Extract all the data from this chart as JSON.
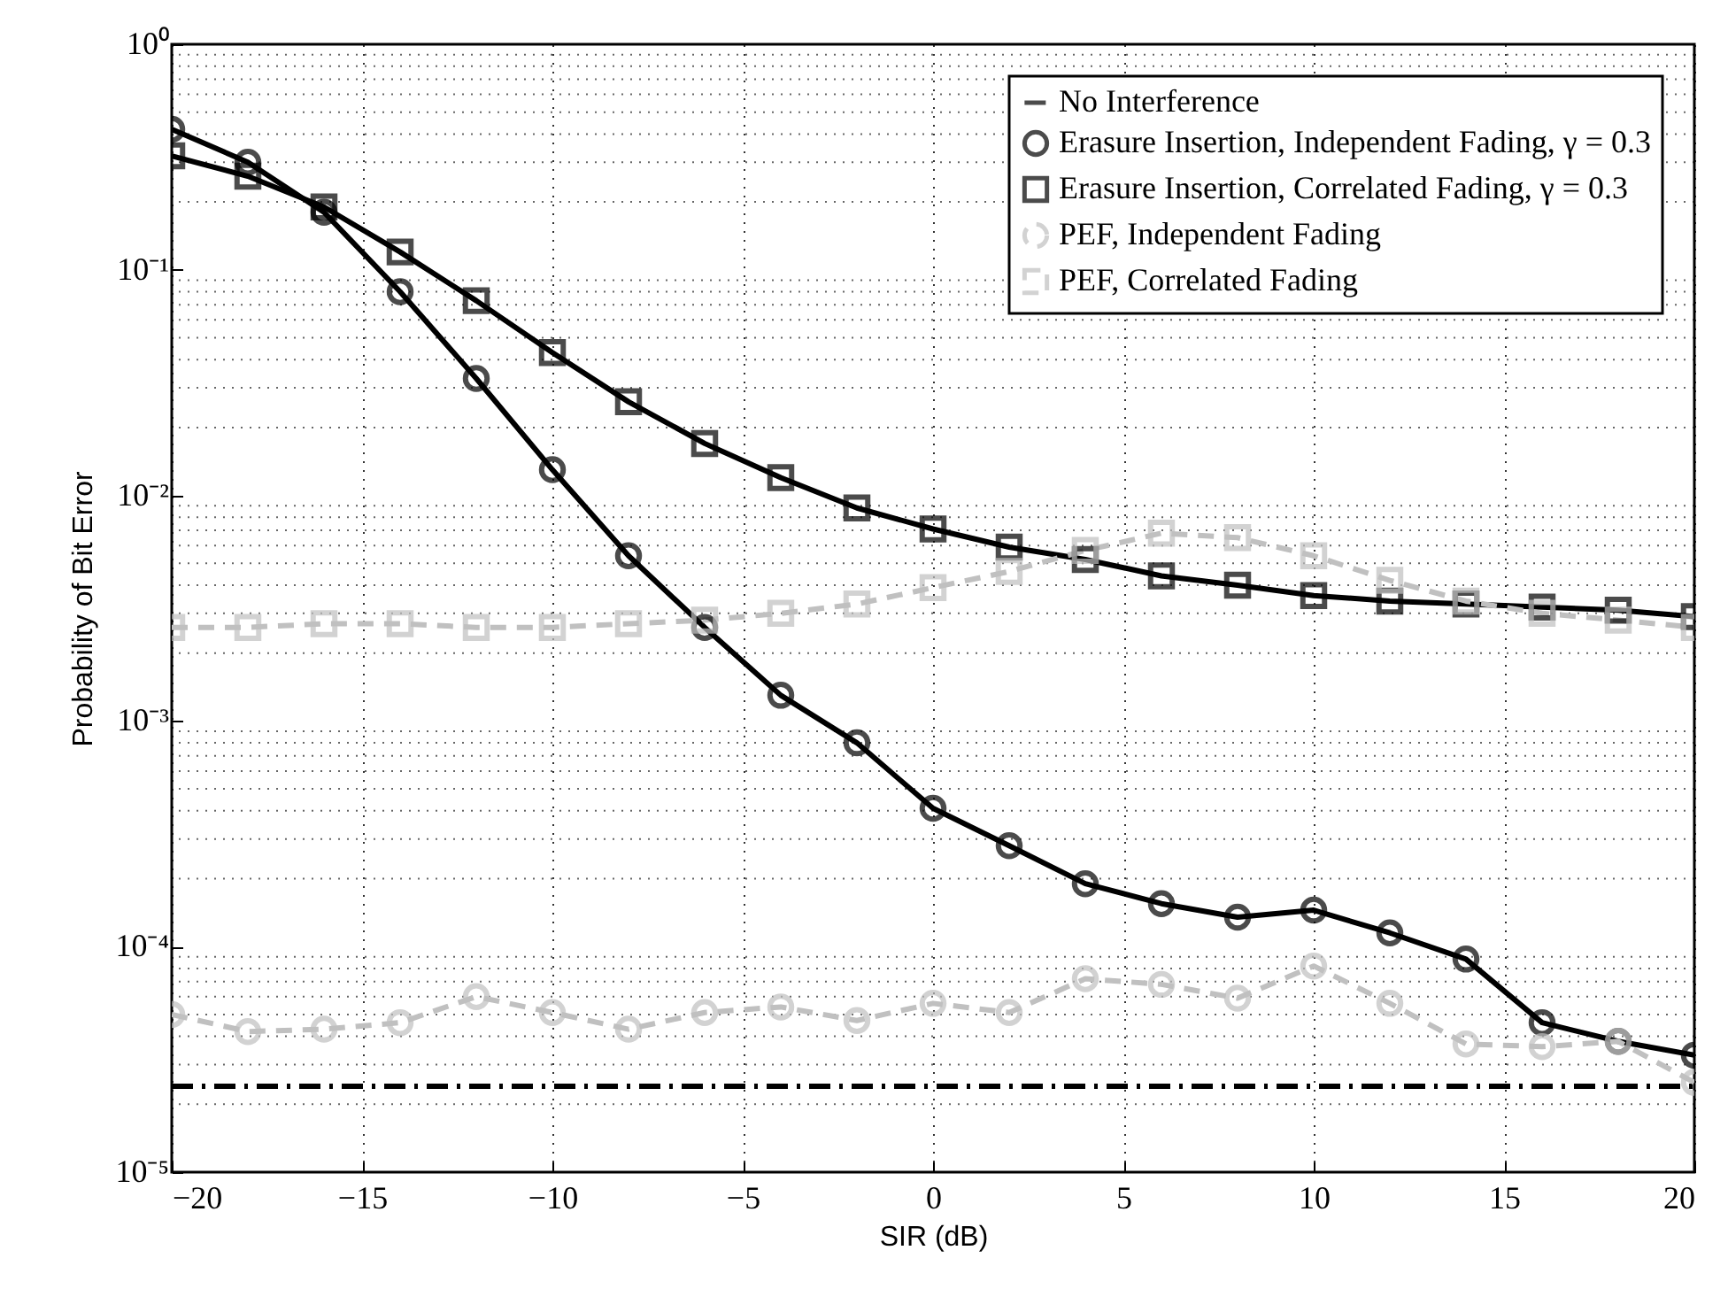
{
  "chart_data": {
    "type": "line",
    "xlabel": "SIR (dB)",
    "ylabel": "Probability of Bit Error",
    "log": "y",
    "xlim": [
      -20,
      20
    ],
    "xticks": [
      {
        "value": -20,
        "label": "−20"
      },
      {
        "value": -15,
        "label": "−15"
      },
      {
        "value": -10,
        "label": "−10"
      },
      {
        "value": -5,
        "label": "−5"
      },
      0,
      5,
      10,
      15,
      20
    ],
    "ylim": [
      1e-05,
      1
    ],
    "yticks": [
      {
        "value": 1e-05,
        "label": "10⁻⁵"
      },
      {
        "value": 0.0001,
        "label": "10⁻⁴"
      },
      {
        "value": 0.001,
        "label": "10⁻³"
      },
      {
        "value": 0.01,
        "label": "10⁻²"
      },
      {
        "value": 0.1,
        "label": "10⁻¹"
      },
      {
        "value": 1,
        "label": "10⁰"
      }
    ],
    "grid": true,
    "legend": "top right",
    "x": [
      -20,
      -18,
      -16,
      -14,
      -12,
      -10,
      -8,
      -6,
      -4,
      -2,
      0,
      2,
      4,
      6,
      8,
      10,
      12,
      14,
      16,
      18,
      20
    ],
    "series": [
      {
        "name": "No Interference",
        "color": "#000000",
        "line_style": "dashdot",
        "x": [
          -20,
          20
        ],
        "values": [
          2.4e-05,
          2.4e-05
        ]
      },
      {
        "name": "Erasure Insertion, Independent Fading, γ = 0.3",
        "color": "#000000",
        "marker": "circle",
        "line_style": "solid",
        "values": [
          0.42,
          0.3,
          0.18,
          0.08,
          0.033,
          0.013,
          0.0054,
          0.0026,
          0.0013,
          0.0008,
          0.00041,
          0.00028,
          0.00019,
          0.000155,
          0.000135,
          0.000145,
          0.000115,
          8.8e-05,
          4.6e-05,
          3.8e-05,
          3.3e-05
        ]
      },
      {
        "name": "Erasure Insertion, Correlated Fading, γ = 0.3",
        "color": "#000000",
        "marker": "square",
        "line_style": "solid",
        "values": [
          0.32,
          0.26,
          0.19,
          0.12,
          0.073,
          0.043,
          0.026,
          0.017,
          0.012,
          0.0088,
          0.0071,
          0.0059,
          0.0052,
          0.0044,
          0.004,
          0.0036,
          0.0034,
          0.0033,
          0.0032,
          0.0031,
          0.0029
        ]
      },
      {
        "name": "PEF, Independent Fading",
        "color": "#c0c0c0",
        "marker": "circle",
        "line_style": "dashed",
        "values": [
          5e-05,
          4.2e-05,
          4.3e-05,
          4.6e-05,
          6e-05,
          5.1e-05,
          4.3e-05,
          5.1e-05,
          5.4e-05,
          4.7e-05,
          5.6e-05,
          5.1e-05,
          7.2e-05,
          6.8e-05,
          5.9e-05,
          8.2e-05,
          5.6e-05,
          3.7e-05,
          3.6e-05,
          3.8e-05,
          2.5e-05
        ]
      },
      {
        "name": "PEF, Correlated Fading",
        "color": "#c0c0c0",
        "marker": "square",
        "line_style": "dashed",
        "values": [
          0.0026,
          0.0026,
          0.0027,
          0.0027,
          0.0026,
          0.0026,
          0.0027,
          0.0028,
          0.003,
          0.0033,
          0.0039,
          0.0046,
          0.0057,
          0.0068,
          0.0065,
          0.0054,
          0.0042,
          0.0034,
          0.003,
          0.0028,
          0.0026
        ]
      }
    ]
  }
}
